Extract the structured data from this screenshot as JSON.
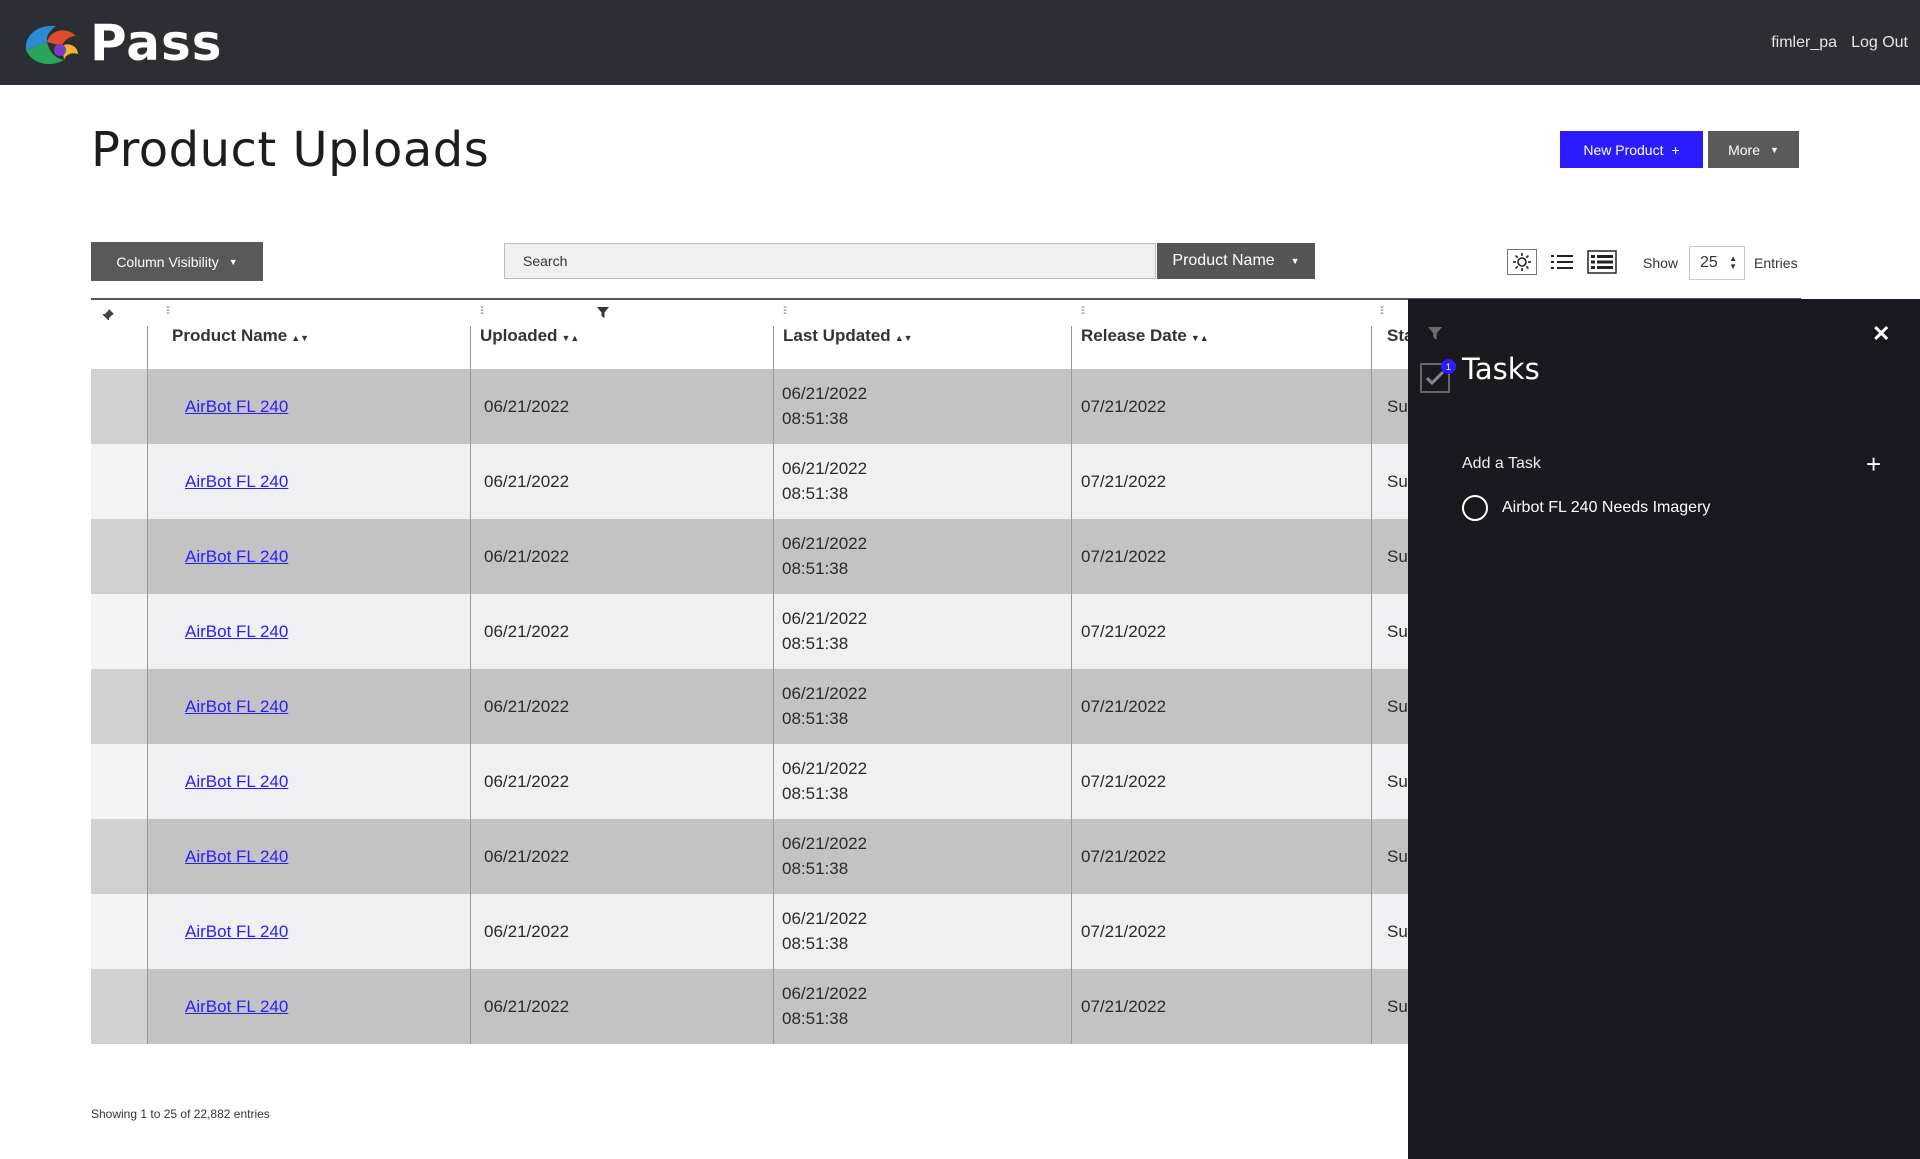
{
  "header": {
    "brand": "Pass",
    "username": "fimler_pa",
    "logout_label": "Log Out"
  },
  "page": {
    "title": "Product Uploads",
    "new_product_label": "New Product",
    "new_product_icon": "+",
    "more_label": "More"
  },
  "toolbar": {
    "column_visibility_label": "Column Visibility",
    "search_placeholder": "Search",
    "search_field_label": "Product Name",
    "show_label": "Show",
    "entries_value": "25",
    "entries_label": "Entries"
  },
  "table": {
    "columns": [
      "Product Name",
      "Uploaded",
      "Last Updated",
      "Release Date",
      "Sta"
    ],
    "rows": [
      {
        "product": "AirBot FL 240",
        "uploaded": "06/21/2022",
        "updated_date": "06/21/2022",
        "updated_time": "08:51:38",
        "release": "07/21/2022",
        "status": "Su"
      },
      {
        "product": "AirBot FL 240",
        "uploaded": "06/21/2022",
        "updated_date": "06/21/2022",
        "updated_time": "08:51:38",
        "release": "07/21/2022",
        "status": "Su"
      },
      {
        "product": "AirBot FL 240",
        "uploaded": "06/21/2022",
        "updated_date": "06/21/2022",
        "updated_time": "08:51:38",
        "release": "07/21/2022",
        "status": "Su"
      },
      {
        "product": "AirBot FL 240",
        "uploaded": "06/21/2022",
        "updated_date": "06/21/2022",
        "updated_time": "08:51:38",
        "release": "07/21/2022",
        "status": "Su"
      },
      {
        "product": "AirBot FL 240",
        "uploaded": "06/21/2022",
        "updated_date": "06/21/2022",
        "updated_time": "08:51:38",
        "release": "07/21/2022",
        "status": "Su"
      },
      {
        "product": "AirBot FL 240",
        "uploaded": "06/21/2022",
        "updated_date": "06/21/2022",
        "updated_time": "08:51:38",
        "release": "07/21/2022",
        "status": "Su"
      },
      {
        "product": "AirBot FL 240",
        "uploaded": "06/21/2022",
        "updated_date": "06/21/2022",
        "updated_time": "08:51:38",
        "release": "07/21/2022",
        "status": "Su"
      },
      {
        "product": "AirBot FL 240",
        "uploaded": "06/21/2022",
        "updated_date": "06/21/2022",
        "updated_time": "08:51:38",
        "release": "07/21/2022",
        "status": "Su"
      },
      {
        "product": "AirBot FL 240",
        "uploaded": "06/21/2022",
        "updated_date": "06/21/2022",
        "updated_time": "08:51:38",
        "release": "07/21/2022",
        "status": "Su"
      }
    ],
    "info": "Showing 1 to 25 of 22,882 entries"
  },
  "tasks": {
    "title": "Tasks",
    "badge_count": "1",
    "add_label": "Add a Task",
    "items": [
      {
        "label": "Airbot FL 240 Needs Imagery"
      }
    ]
  },
  "colors": {
    "accent": "#2b1bff",
    "header_bg": "#2b2e33",
    "panel_bg": "#1b1820"
  }
}
